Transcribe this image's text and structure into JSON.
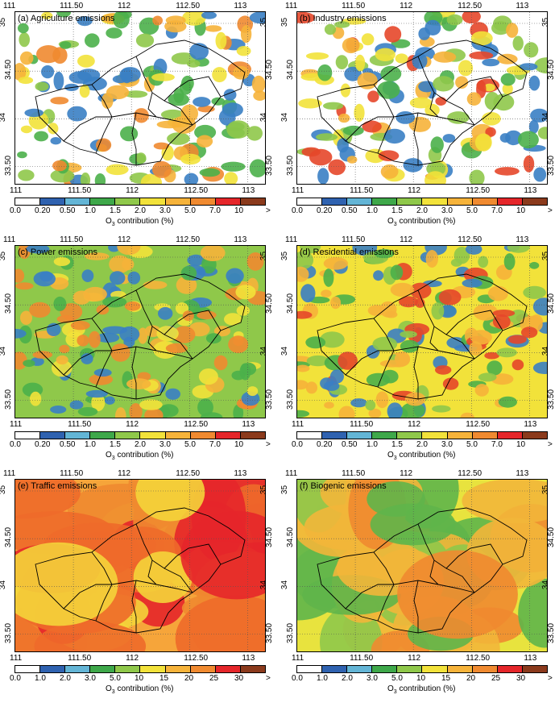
{
  "panels": [
    {
      "title": "(a) Agriculture emissions",
      "scale": "fine",
      "base": "#ffffff",
      "blobs": [
        "#3a7fc4",
        "#4bb04a",
        "#8fc84a",
        "#f2e23a",
        "#f6b33a",
        "#f08a30"
      ]
    },
    {
      "title": "(b) Industry emissions",
      "scale": "fine",
      "base": "#ffffff",
      "blobs": [
        "#3a7fc4",
        "#4bb04a",
        "#8fc84a",
        "#f2e23a",
        "#f6b33a",
        "#e5472a"
      ]
    },
    {
      "title": "(c) Power emissions",
      "scale": "fine",
      "base": "#8fc84a",
      "blobs": [
        "#3a7fc4",
        "#4bb04a",
        "#f2e23a",
        "#f6b33a",
        "#f08a30"
      ]
    },
    {
      "title": "(d) Residential emissions",
      "scale": "fine",
      "base": "#f2e23a",
      "blobs": [
        "#3a7fc4",
        "#4bb04a",
        "#8fc84a",
        "#f6b33a",
        "#e5472a"
      ]
    },
    {
      "title": "(e) Traffic emissions",
      "scale": "coarse",
      "base": "#f6a53a",
      "blobs": [
        "#f4d43a",
        "#f08a30",
        "#ee6a2a",
        "#e5262a"
      ]
    },
    {
      "title": "(f) Biogenic emissions",
      "scale": "coarse",
      "base": "#e8e33e",
      "blobs": [
        "#5fb54a",
        "#8fc84a",
        "#f2b63a",
        "#f08a30"
      ]
    }
  ],
  "x_ticks": [
    "111",
    "111.50",
    "112",
    "112.50",
    "113"
  ],
  "y_ticks": [
    "35",
    "34.50",
    "34",
    "33.50"
  ],
  "colorbar_fine": {
    "labels": [
      "0.0",
      "0.20",
      "0.50",
      "1.0",
      "1.5",
      "2.0",
      "3.0",
      "5.0",
      "7.0",
      "10",
      ">"
    ],
    "colors": [
      "#ffffff",
      "#2f62b0",
      "#63b5d6",
      "#3ea84a",
      "#8fc84a",
      "#f2e23a",
      "#f6b33a",
      "#f08a30",
      "#e5262a",
      "#8b3a1c"
    ]
  },
  "colorbar_coarse": {
    "labels": [
      "0.0",
      "1.0",
      "2.0",
      "3.0",
      "5.0",
      "10",
      "15",
      "20",
      "25",
      "30",
      ">"
    ],
    "colors": [
      "#ffffff",
      "#2f62b0",
      "#63b5d6",
      "#3ea84a",
      "#8fc84a",
      "#f2e23a",
      "#f6b33a",
      "#f08a30",
      "#e5262a",
      "#8b3a1c"
    ]
  },
  "colorbar_title_prefix": "O",
  "colorbar_title_sub": "3",
  "colorbar_title_suffix": " contribution (%)"
}
